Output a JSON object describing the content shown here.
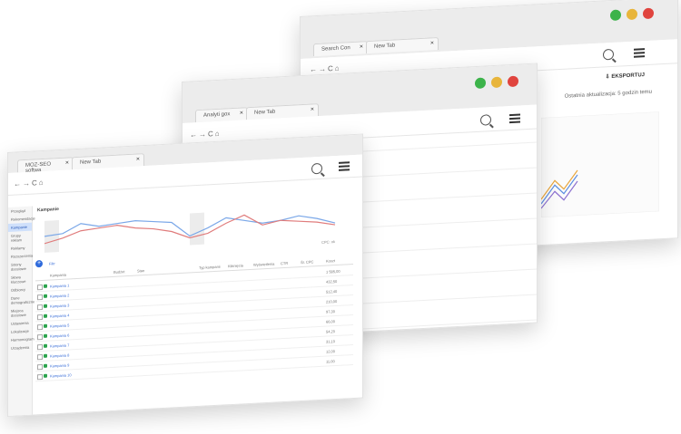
{
  "colors": {
    "red": "#e0443e",
    "yellow": "#e8b53b",
    "green": "#3cb34a",
    "line_blue": "#7aa7e8",
    "line_red": "#e07c7c",
    "accent": "#3b6fd8"
  },
  "back_window": {
    "tabs": [
      "Search Con",
      "New Tab"
    ],
    "toolbar_action": "EKSPORTUJ",
    "status_text": "Ostatnia aktualizacja: 5 godzin temu"
  },
  "middle_window": {
    "tabs": [
      "Analyti gox",
      "New Tab"
    ]
  },
  "front_window": {
    "tabs": [
      "MOZ-SEO softwa",
      "New Tab"
    ],
    "page_title": "Kampanie",
    "filter_label": "Filtr",
    "table_headers": [
      "Kampania",
      "Budżet",
      "Stan",
      "Typ kampanii",
      "Kliknięcia",
      "Wyświetlenia",
      "CTR",
      "Śr. CPC",
      "Koszt"
    ],
    "chart_footer": "CPC: ok",
    "rows": [
      {
        "name": "Kampania 1",
        "cost": "1 585,00"
      },
      {
        "name": "Kampania 2",
        "cost": "432,50"
      },
      {
        "name": "Kampania 3",
        "cost": "512,40"
      },
      {
        "name": "Kampania 4",
        "cost": "210,00"
      },
      {
        "name": "Kampania 5",
        "cost": "97,30"
      },
      {
        "name": "Kampania 6",
        "cost": "66,00"
      },
      {
        "name": "Kampania 7",
        "cost": "54,20"
      },
      {
        "name": "Kampania 8",
        "cost": "31,10"
      },
      {
        "name": "Kampania 9",
        "cost": "12,00"
      },
      {
        "name": "Kampania 10",
        "cost": "11,00"
      }
    ],
    "sidebar_items": [
      "Przegląd",
      "Rekomendacje",
      "Kampanie",
      "Grupy reklam",
      "Reklamy",
      "Rozszerzenia",
      "Strony docelowe",
      "Słowa kluczowe",
      "Odbiorcy",
      "Dane demograficzne",
      "Miejsca docelowe",
      "Ustawienia",
      "Lokalizacje",
      "Harmonogram",
      "Urządzenia"
    ]
  }
}
